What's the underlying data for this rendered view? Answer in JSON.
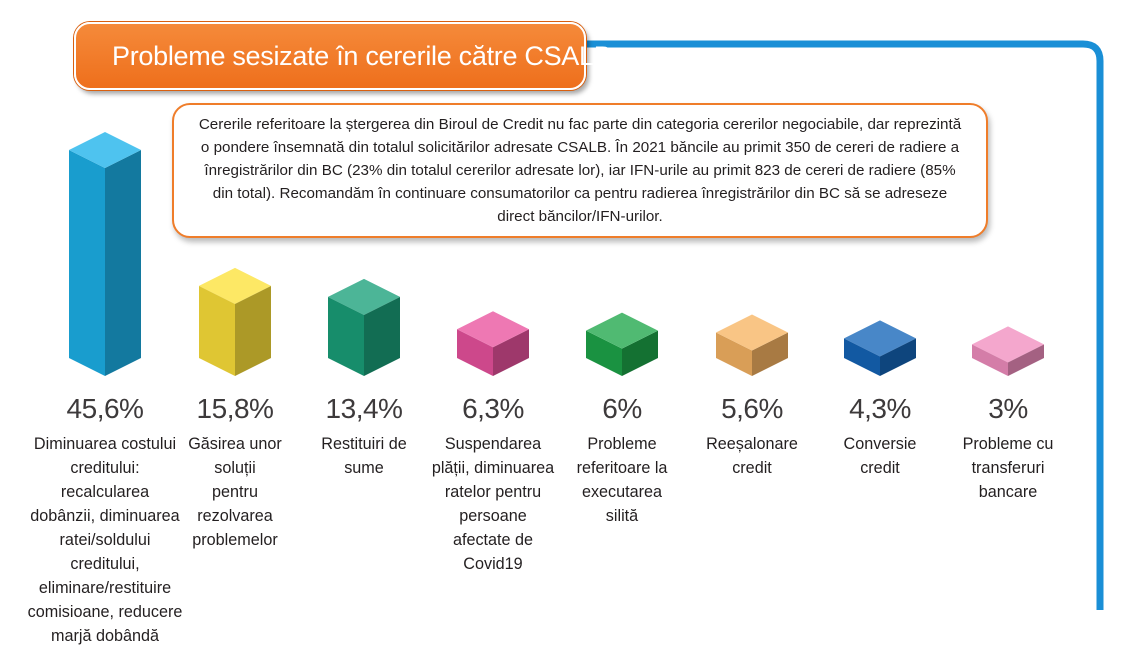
{
  "title": "Probleme sesizate în cererile către CSALB",
  "note": "Cererile referitoare la ștergerea din Biroul de Credit nu fac parte din categoria cererilor negociabile, dar reprezintă o pondere însemnată din totalul solicitărilor adresate CSALB. În 2021 băncile au primit 350 de cereri de radiere a înregistrărilor din BC (23% din totalul cererilor adresate lor), iar IFN-urile au primit 823 de cereri de radiere (85% din total). Recomandăm în continuare consumatorilor ca pentru radierea înregistrărilor din BC să se adreseze direct băncilor/IFN-urilor.",
  "colors": {
    "title_bg": "#f07a26",
    "note_border": "#ef7d2a",
    "frame_line": "#1a8fd6"
  },
  "chart_data": {
    "type": "bar",
    "title": "",
    "xlabel": "",
    "ylabel": "",
    "unit": "%",
    "ylim": [
      0,
      45.6
    ],
    "grid": false,
    "categories": [
      "Diminuarea costului creditului: recalcularea dobânzii, diminuarea ratei/soldului creditului, eliminare/restituire comisioane, reducere marjă dobândă",
      "Găsirea unor soluții pentru rezolvarea problemelor",
      "Restituiri de sume",
      "Suspendarea plății, diminuarea ratelor pentru persoane afectate de Covid19",
      "Probleme referitoare la executarea silită",
      "Reeșalonare credit",
      "Conversie credit",
      "Probleme cu transferuri bancare"
    ],
    "category_lines": [
      [
        "Diminuarea costului",
        "creditului: recalcularea",
        "dobânzii, diminuarea",
        "ratei/soldului creditului,",
        "eliminare/restituire",
        "comisioane, reducere",
        "marjă dobândă"
      ],
      [
        "Găsirea unor",
        "soluții",
        "pentru",
        "rezolvarea",
        "problemelor"
      ],
      [
        "Restituiri de",
        "sume"
      ],
      [
        "Suspendarea",
        "plății, diminuarea",
        "ratelor pentru",
        "persoane",
        "afectate de",
        "Covid19"
      ],
      [
        "Probleme",
        "referitoare la",
        "executarea",
        "silită"
      ],
      [
        "Reeșalonare",
        "credit"
      ],
      [
        "Conversie",
        "credit"
      ],
      [
        "Probleme cu",
        "transferuri",
        "bancare"
      ]
    ],
    "values": [
      45.6,
      15.8,
      13.4,
      6.3,
      6.0,
      5.6,
      4.3,
      3.0
    ],
    "value_labels": [
      "45,6%",
      "15,8%",
      "13,4%",
      "6,3%",
      "6%",
      "5,6%",
      "4,3%",
      "3%"
    ],
    "bar_colors": [
      "#1cb2ea",
      "#fde13a",
      "#1aa07a",
      "#e9529e",
      "#1ea64a",
      "#f7b463",
      "#1465b8",
      "#f18ebf"
    ]
  }
}
